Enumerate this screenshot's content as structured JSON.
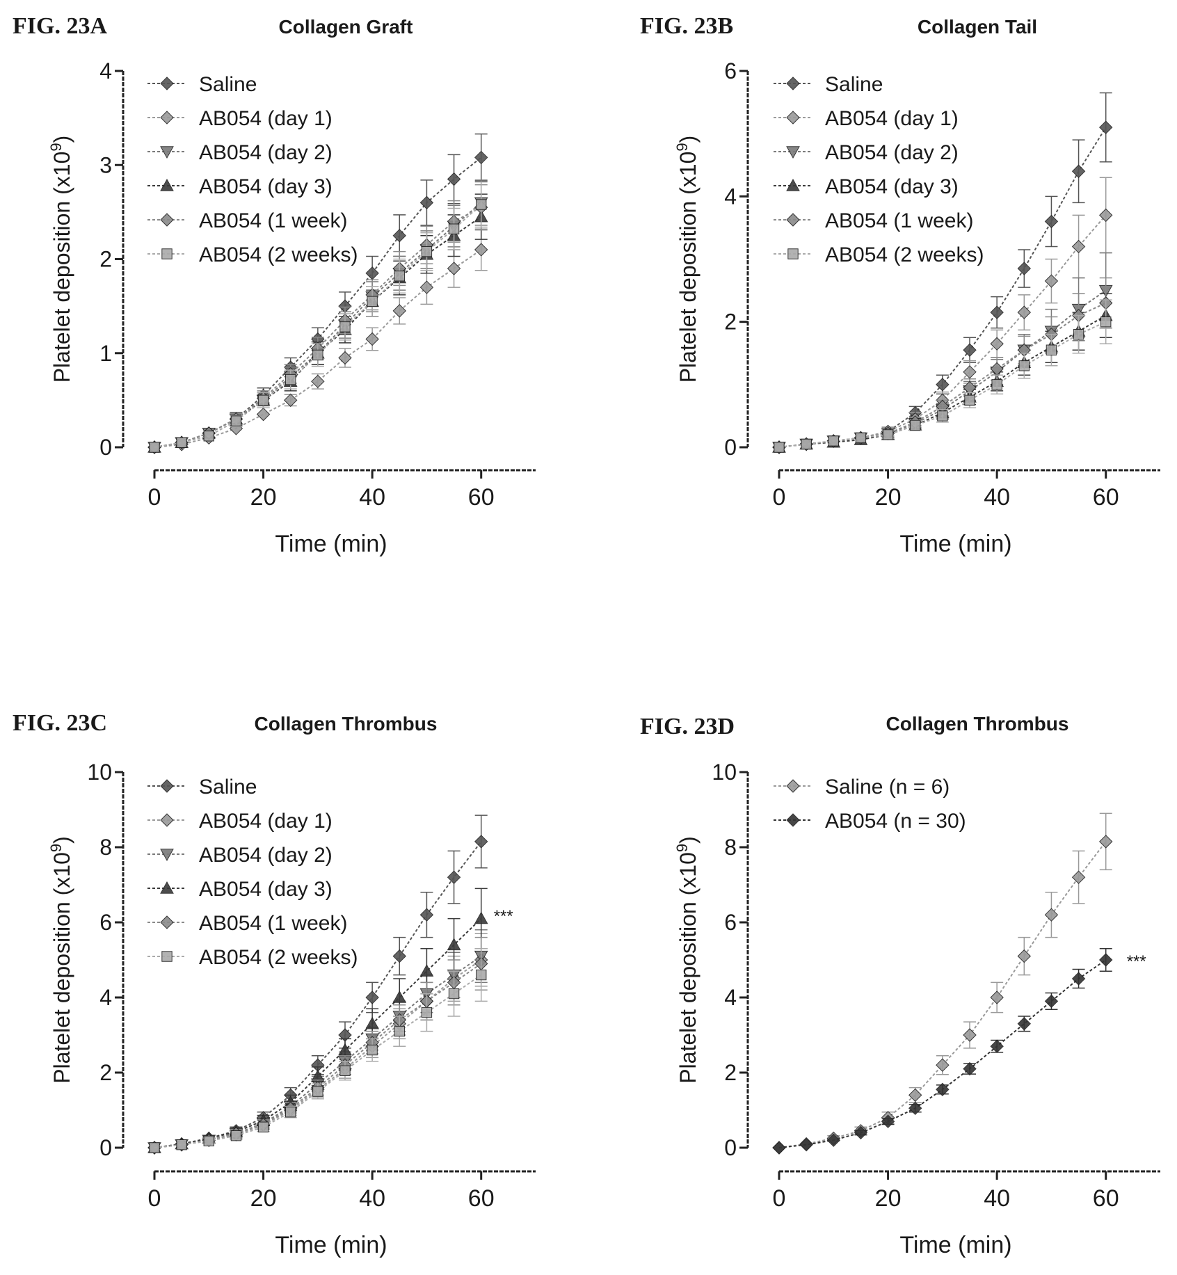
{
  "chart_data": [
    {
      "type": "line",
      "figure_label": "FIG. 23A",
      "title": "Collagen Graft",
      "xlabel": "Time (min)",
      "ylabel_prefix": "Platelet deposition (x10",
      "ylabel_exp": "9",
      "ylabel_suffix": ")",
      "xlim": [
        0,
        70
      ],
      "ylim": [
        0,
        4
      ],
      "xticks": [
        0,
        20,
        40,
        60
      ],
      "yticks": [
        0,
        1,
        2,
        3,
        4
      ],
      "x": [
        0,
        5,
        10,
        15,
        20,
        25,
        30,
        35,
        40,
        45,
        50,
        55,
        60
      ],
      "series": [
        {
          "name": "Saline",
          "values": [
            0,
            0.05,
            0.15,
            0.3,
            0.55,
            0.85,
            1.15,
            1.5,
            1.85,
            2.25,
            2.6,
            2.85,
            3.08
          ],
          "errors": [
            0.02,
            0.03,
            0.05,
            0.07,
            0.08,
            0.1,
            0.12,
            0.15,
            0.18,
            0.22,
            0.24,
            0.26,
            0.25
          ]
        },
        {
          "name": "AB054 (day 1)",
          "values": [
            0,
            0.03,
            0.1,
            0.2,
            0.35,
            0.5,
            0.7,
            0.95,
            1.15,
            1.45,
            1.7,
            1.9,
            2.1
          ],
          "errors": [
            0.01,
            0.02,
            0.03,
            0.04,
            0.05,
            0.06,
            0.08,
            0.1,
            0.12,
            0.14,
            0.18,
            0.2,
            0.22
          ]
        },
        {
          "name": "AB054 (day 2)",
          "values": [
            0,
            0.05,
            0.15,
            0.3,
            0.5,
            0.75,
            1.0,
            1.3,
            1.6,
            1.85,
            2.1,
            2.35,
            2.6
          ],
          "errors": [
            0.02,
            0.03,
            0.05,
            0.06,
            0.08,
            0.1,
            0.12,
            0.14,
            0.16,
            0.18,
            0.2,
            0.22,
            0.24
          ]
        },
        {
          "name": "AB054 (day 3)",
          "values": [
            0,
            0.05,
            0.15,
            0.3,
            0.5,
            0.7,
            1.0,
            1.25,
            1.55,
            1.8,
            2.05,
            2.25,
            2.45
          ],
          "errors": [
            0.02,
            0.03,
            0.05,
            0.06,
            0.08,
            0.1,
            0.12,
            0.14,
            0.16,
            0.18,
            0.2,
            0.22,
            0.24
          ]
        },
        {
          "name": "AB054 (1 week)",
          "values": [
            0,
            0.05,
            0.15,
            0.3,
            0.52,
            0.78,
            1.05,
            1.35,
            1.62,
            1.9,
            2.15,
            2.4,
            2.55
          ],
          "errors": [
            0.02,
            0.03,
            0.05,
            0.06,
            0.08,
            0.1,
            0.12,
            0.14,
            0.16,
            0.18,
            0.2,
            0.22,
            0.24
          ]
        },
        {
          "name": "AB054 (2 weeks)",
          "values": [
            0,
            0.05,
            0.12,
            0.28,
            0.5,
            0.72,
            0.98,
            1.28,
            1.55,
            1.82,
            2.08,
            2.32,
            2.58
          ],
          "errors": [
            0.02,
            0.03,
            0.05,
            0.06,
            0.08,
            0.1,
            0.12,
            0.14,
            0.16,
            0.18,
            0.2,
            0.22,
            0.24
          ]
        }
      ],
      "legend_position": "top-left",
      "annotation": ""
    },
    {
      "type": "line",
      "figure_label": "FIG. 23B",
      "title": "Collagen Tail",
      "xlabel": "Time (min)",
      "ylabel_prefix": "Platelet deposition (x10",
      "ylabel_exp": "9",
      "ylabel_suffix": ")",
      "xlim": [
        0,
        70
      ],
      "ylim": [
        0,
        6
      ],
      "xticks": [
        0,
        20,
        40,
        60
      ],
      "yticks": [
        0,
        2,
        4,
        6
      ],
      "x": [
        0,
        5,
        10,
        15,
        20,
        25,
        30,
        35,
        40,
        45,
        50,
        55,
        60
      ],
      "series": [
        {
          "name": "Saline",
          "values": [
            0,
            0.05,
            0.1,
            0.15,
            0.25,
            0.55,
            1.0,
            1.55,
            2.15,
            2.85,
            3.6,
            4.4,
            5.1
          ],
          "errors": [
            0.02,
            0.03,
            0.04,
            0.05,
            0.07,
            0.1,
            0.15,
            0.2,
            0.25,
            0.3,
            0.4,
            0.5,
            0.55
          ]
        },
        {
          "name": "AB054 (day 1)",
          "values": [
            0,
            0.05,
            0.1,
            0.15,
            0.25,
            0.45,
            0.75,
            1.2,
            1.65,
            2.15,
            2.65,
            3.2,
            3.7
          ],
          "errors": [
            0.02,
            0.03,
            0.04,
            0.05,
            0.07,
            0.1,
            0.13,
            0.18,
            0.22,
            0.28,
            0.35,
            0.5,
            0.6
          ]
        },
        {
          "name": "AB054 (day 2)",
          "values": [
            0,
            0.05,
            0.1,
            0.15,
            0.22,
            0.38,
            0.6,
            0.9,
            1.2,
            1.55,
            1.85,
            2.2,
            2.5
          ],
          "errors": [
            0.02,
            0.03,
            0.04,
            0.05,
            0.06,
            0.08,
            0.1,
            0.15,
            0.2,
            0.25,
            0.35,
            0.5,
            0.6
          ]
        },
        {
          "name": "AB054 (day 3)",
          "values": [
            0,
            0.05,
            0.08,
            0.12,
            0.2,
            0.35,
            0.55,
            0.8,
            1.05,
            1.35,
            1.6,
            1.85,
            2.1
          ],
          "errors": [
            0.02,
            0.03,
            0.04,
            0.05,
            0.06,
            0.08,
            0.1,
            0.12,
            0.15,
            0.2,
            0.25,
            0.3,
            0.35
          ]
        },
        {
          "name": "AB054 (1 week)",
          "values": [
            0,
            0.05,
            0.1,
            0.15,
            0.22,
            0.4,
            0.65,
            0.95,
            1.25,
            1.55,
            1.8,
            2.1,
            2.3
          ],
          "errors": [
            0.02,
            0.03,
            0.04,
            0.05,
            0.06,
            0.08,
            0.1,
            0.14,
            0.18,
            0.22,
            0.28,
            0.35,
            0.4
          ]
        },
        {
          "name": "AB054 (2 weeks)",
          "values": [
            0,
            0.05,
            0.1,
            0.15,
            0.2,
            0.35,
            0.5,
            0.75,
            1.0,
            1.3,
            1.55,
            1.8,
            2.0
          ],
          "errors": [
            0.02,
            0.03,
            0.04,
            0.05,
            0.06,
            0.08,
            0.1,
            0.12,
            0.15,
            0.2,
            0.25,
            0.3,
            0.35
          ]
        }
      ],
      "legend_position": "top-left",
      "annotation": ""
    },
    {
      "type": "line",
      "figure_label": "FIG. 23C",
      "title": "Collagen Thrombus",
      "xlabel": "Time (min)",
      "ylabel_prefix": "Platelet deposition (x10",
      "ylabel_exp": "9",
      "ylabel_suffix": ")",
      "xlim": [
        0,
        70
      ],
      "ylim": [
        0,
        10
      ],
      "xticks": [
        0,
        20,
        40,
        60
      ],
      "yticks": [
        0,
        2,
        4,
        6,
        8,
        10
      ],
      "x": [
        0,
        5,
        10,
        15,
        20,
        25,
        30,
        35,
        40,
        45,
        50,
        55,
        60
      ],
      "series": [
        {
          "name": "Saline",
          "values": [
            0,
            0.1,
            0.25,
            0.45,
            0.8,
            1.4,
            2.2,
            3.0,
            4.0,
            5.1,
            6.2,
            7.2,
            8.15
          ],
          "errors": [
            0.03,
            0.05,
            0.07,
            0.1,
            0.15,
            0.2,
            0.25,
            0.35,
            0.4,
            0.5,
            0.6,
            0.7,
            0.7
          ]
        },
        {
          "name": "AB054 (day 1)",
          "values": [
            0,
            0.08,
            0.2,
            0.35,
            0.6,
            1.0,
            1.55,
            2.1,
            2.7,
            3.3,
            3.9,
            4.5,
            5.0
          ],
          "errors": [
            0.03,
            0.05,
            0.07,
            0.1,
            0.12,
            0.15,
            0.2,
            0.25,
            0.3,
            0.4,
            0.5,
            0.6,
            0.7
          ]
        },
        {
          "name": "AB054 (day 2)",
          "values": [
            0,
            0.08,
            0.2,
            0.38,
            0.65,
            1.1,
            1.7,
            2.3,
            2.9,
            3.5,
            4.1,
            4.6,
            5.1
          ],
          "errors": [
            0.03,
            0.05,
            0.07,
            0.1,
            0.12,
            0.15,
            0.2,
            0.25,
            0.3,
            0.4,
            0.5,
            0.6,
            0.7
          ]
        },
        {
          "name": "AB054 (day 3)",
          "values": [
            0,
            0.1,
            0.25,
            0.42,
            0.72,
            1.2,
            1.9,
            2.6,
            3.3,
            4.0,
            4.7,
            5.4,
            6.1
          ],
          "errors": [
            0.03,
            0.05,
            0.07,
            0.1,
            0.14,
            0.2,
            0.25,
            0.3,
            0.4,
            0.5,
            0.6,
            0.7,
            0.8
          ]
        },
        {
          "name": "AB054 (1 week)",
          "values": [
            0,
            0.08,
            0.2,
            0.38,
            0.62,
            1.05,
            1.6,
            2.2,
            2.8,
            3.4,
            3.9,
            4.4,
            4.9
          ],
          "errors": [
            0.03,
            0.05,
            0.07,
            0.1,
            0.12,
            0.15,
            0.2,
            0.25,
            0.3,
            0.4,
            0.5,
            0.6,
            0.7
          ]
        },
        {
          "name": "AB054 (2 weeks)",
          "values": [
            0,
            0.08,
            0.18,
            0.32,
            0.55,
            0.95,
            1.5,
            2.05,
            2.6,
            3.1,
            3.6,
            4.1,
            4.6
          ],
          "errors": [
            0.03,
            0.05,
            0.07,
            0.1,
            0.12,
            0.15,
            0.2,
            0.25,
            0.3,
            0.4,
            0.5,
            0.6,
            0.7
          ]
        }
      ],
      "legend_position": "top-left",
      "annotation": "***"
    },
    {
      "type": "line",
      "figure_label": "FIG. 23D",
      "title": "Collagen Thrombus",
      "xlabel": "Time (min)",
      "ylabel_prefix": "Platelet deposition (x10",
      "ylabel_exp": "9",
      "ylabel_suffix": ")",
      "xlim": [
        0,
        70
      ],
      "ylim": [
        0,
        10
      ],
      "xticks": [
        0,
        20,
        40,
        60
      ],
      "yticks": [
        0,
        2,
        4,
        6,
        8,
        10
      ],
      "x": [
        0,
        5,
        10,
        15,
        20,
        25,
        30,
        35,
        40,
        45,
        50,
        55,
        60
      ],
      "series": [
        {
          "name": "Saline (n = 6)",
          "values": [
            0,
            0.1,
            0.25,
            0.45,
            0.8,
            1.4,
            2.2,
            3.0,
            4.0,
            5.1,
            6.2,
            7.2,
            8.15
          ],
          "errors": [
            0.03,
            0.05,
            0.07,
            0.1,
            0.15,
            0.2,
            0.25,
            0.35,
            0.4,
            0.5,
            0.6,
            0.7,
            0.75
          ]
        },
        {
          "name": "AB054 (n = 30)",
          "values": [
            0,
            0.08,
            0.2,
            0.4,
            0.7,
            1.05,
            1.55,
            2.1,
            2.7,
            3.3,
            3.9,
            4.5,
            5.0
          ],
          "errors": [
            0.02,
            0.03,
            0.05,
            0.06,
            0.08,
            0.1,
            0.12,
            0.14,
            0.16,
            0.2,
            0.22,
            0.25,
            0.3
          ]
        }
      ],
      "legend_position": "top-left",
      "annotation": "***"
    }
  ],
  "style": {
    "text_color": "#1a1a1a",
    "series_colors": [
      "#555555",
      "#9a9a9a",
      "#7a7a7a",
      "#3a3a3a",
      "#8a8a8a",
      "#aaaaaa"
    ],
    "series_colors_d": [
      "#9a9a9a",
      "#333333"
    ]
  }
}
